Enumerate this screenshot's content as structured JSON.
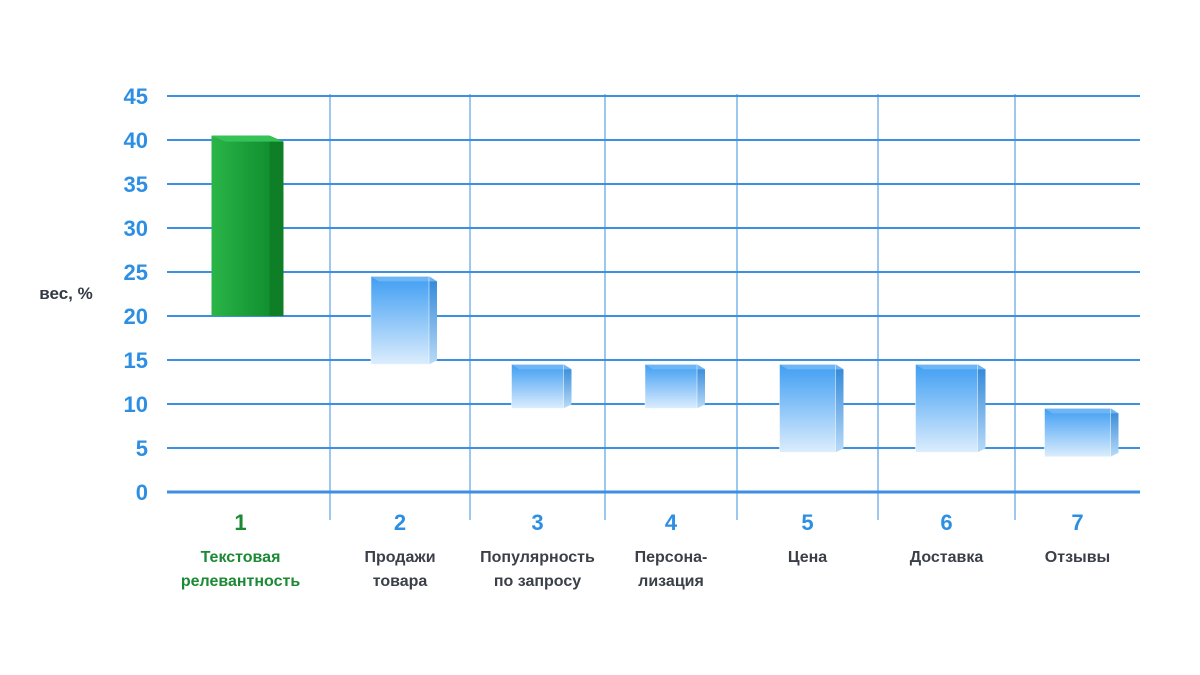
{
  "chart_data": {
    "type": "bar",
    "ylabel": "вес, %",
    "ylim": [
      0,
      45
    ],
    "yticks": [
      0,
      5,
      10,
      15,
      20,
      25,
      30,
      35,
      40,
      45
    ],
    "grid": true,
    "categories": [
      {
        "num": "1",
        "label": [
          "Текстовая",
          "релевантность"
        ],
        "range": [
          20,
          40.5
        ],
        "highlight": true
      },
      {
        "num": "2",
        "label": [
          "Продажи",
          "товара"
        ],
        "range": [
          14.5,
          24.5
        ],
        "highlight": false
      },
      {
        "num": "3",
        "label": [
          "Популярность",
          "по запросу"
        ],
        "range": [
          9.5,
          14.5
        ],
        "highlight": false
      },
      {
        "num": "4",
        "label": [
          "Персона-",
          "лизация"
        ],
        "range": [
          9.5,
          14.5
        ],
        "highlight": false
      },
      {
        "num": "5",
        "label": [
          "Цена"
        ],
        "range": [
          4.5,
          14.5
        ],
        "highlight": false
      },
      {
        "num": "6",
        "label": [
          "Доставка"
        ],
        "range": [
          4.5,
          14.5
        ],
        "highlight": false
      },
      {
        "num": "7",
        "label": [
          "Отзывы"
        ],
        "range": [
          4,
          9.5
        ],
        "highlight": false
      }
    ]
  },
  "colors": {
    "axis_text": "#2d8fe3",
    "grid": "#3d8fe0",
    "grid_vertical": "#9cc8f0",
    "highlight": "#1a9a3a",
    "highlight_label": "#1c8a34",
    "label_text": "#3a3f48",
    "bar_top": "#3f9ef3",
    "bar_bottom": "#d9ecfd",
    "green_main": "#1faa3c",
    "green_side": "#0f7f27"
  }
}
